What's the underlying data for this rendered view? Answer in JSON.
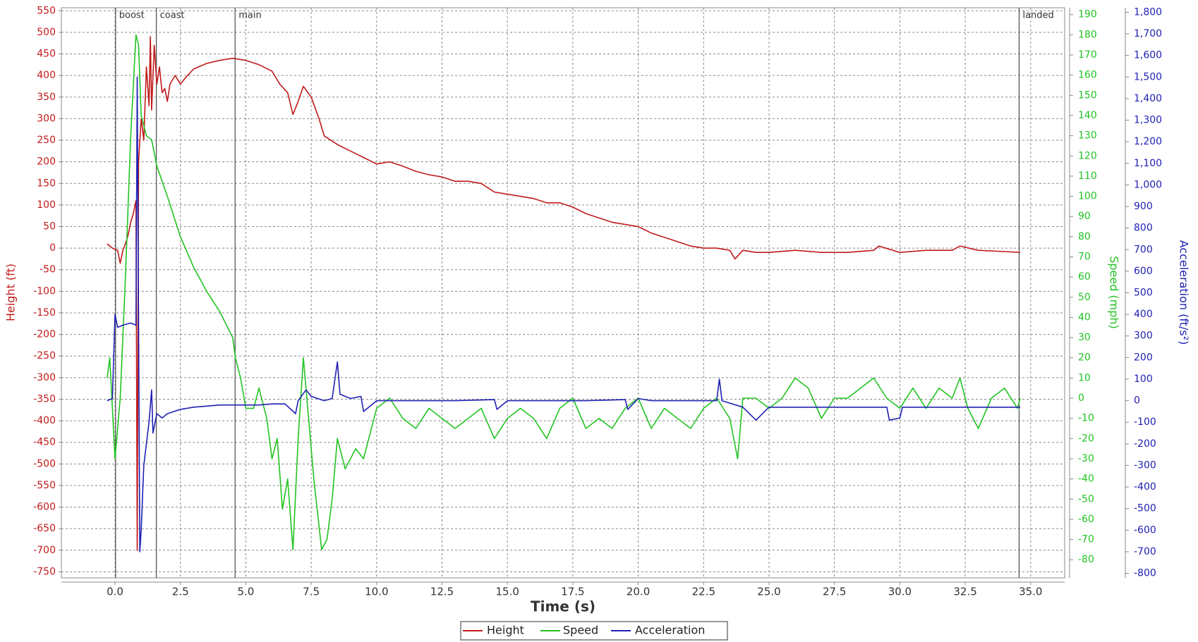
{
  "chart_data": {
    "type": "line",
    "xlabel": "Time (s)",
    "ylabel": "Height (ft)",
    "y2label": "Speed (mph)",
    "y3label": "Acceleration (ft/s²)",
    "xlim": [
      -2.05,
      36.3
    ],
    "xticks": [
      {
        "value": 0,
        "label": "0.0"
      },
      2.5,
      {
        "value": 5,
        "label": "5.0"
      },
      7.5,
      {
        "value": 10,
        "label": "10.0"
      },
      12.5,
      {
        "value": 15,
        "label": "15.0"
      },
      17.5,
      {
        "value": 20,
        "label": "20.0"
      },
      22.5,
      {
        "value": 25,
        "label": "25.0"
      },
      27.5,
      {
        "value": 30,
        "label": "30.0"
      },
      32.5,
      {
        "value": 35,
        "label": "35.0"
      }
    ],
    "ylim": [
      -764,
      557
    ],
    "yticks": [
      -750,
      -700,
      -650,
      -600,
      -550,
      -500,
      -450,
      -400,
      -350,
      -300,
      -250,
      -200,
      -150,
      -100,
      -50,
      0,
      50,
      100,
      150,
      200,
      250,
      300,
      350,
      400,
      450,
      500,
      550
    ],
    "y2lim": [
      -89,
      193.4
    ],
    "y2ticks": [
      -80,
      -70,
      -60,
      -50,
      -40,
      -30,
      -20,
      -10,
      0,
      10,
      20,
      30,
      40,
      50,
      60,
      70,
      80,
      90,
      100,
      110,
      120,
      130,
      140,
      150,
      160,
      170,
      180,
      190
    ],
    "y3lim": [
      -821,
      1821
    ],
    "y3ticks": [
      -800,
      -700,
      -600,
      -500,
      -400,
      -300,
      -200,
      -100,
      0,
      100,
      200,
      300,
      400,
      500,
      600,
      700,
      800,
      900,
      {
        "value": 1000,
        "label": "1,000"
      },
      {
        "value": 1100,
        "label": "1,100"
      },
      {
        "value": 1200,
        "label": "1,200"
      },
      {
        "value": 1300,
        "label": "1,300"
      },
      {
        "value": 1400,
        "label": "1,400"
      },
      {
        "value": 1500,
        "label": "1,500"
      },
      {
        "value": 1600,
        "label": "1,600"
      },
      {
        "value": 1700,
        "label": "1,700"
      },
      {
        "value": 1800,
        "label": "1,800"
      }
    ],
    "grid": true,
    "events": [
      {
        "label": "boost",
        "x": 0.02
      },
      {
        "label": "coast",
        "x": 1.58
      },
      {
        "label": "main",
        "x": 4.59
      },
      {
        "label": "landed",
        "x": 34.56
      }
    ],
    "series": [
      {
        "name": "Height",
        "color": "#c01a1a",
        "axis": "y",
        "x": [
          -0.3,
          -0.1,
          0.1,
          0.2,
          0.3,
          0.4,
          0.5,
          0.6,
          0.7,
          0.8,
          0.85,
          0.9,
          1.0,
          1.1,
          1.2,
          1.3,
          1.35,
          1.4,
          1.5,
          1.6,
          1.7,
          1.8,
          1.9,
          2.0,
          2.1,
          2.3,
          2.5,
          2.7,
          3.0,
          3.5,
          4.0,
          4.5,
          5.0,
          5.5,
          6.0,
          6.3,
          6.6,
          6.8,
          7.0,
          7.2,
          7.5,
          7.8,
          8.0,
          8.5,
          9.0,
          9.5,
          10.0,
          10.5,
          11.0,
          11.5,
          12.0,
          12.5,
          13.0,
          13.5,
          14.0,
          14.5,
          15.0,
          15.5,
          16.0,
          16.5,
          17.0,
          17.5,
          18.0,
          18.5,
          19.0,
          19.5,
          20.0,
          20.5,
          21.0,
          21.5,
          22.0,
          22.5,
          23.0,
          23.5,
          23.7,
          24.0,
          24.5,
          25.0,
          26.0,
          27.0,
          28.0,
          29.0,
          29.2,
          30.0,
          31.0,
          32.0,
          32.3,
          33.0,
          34.0,
          34.6
        ],
        "values": [
          10,
          0,
          -5,
          -35,
          -5,
          10,
          30,
          60,
          80,
          110,
          -700,
          200,
          300,
          250,
          420,
          330,
          490,
          320,
          470,
          380,
          420,
          360,
          370,
          340,
          380,
          400,
          380,
          395,
          415,
          428,
          435,
          440,
          435,
          425,
          410,
          380,
          360,
          310,
          340,
          375,
          350,
          300,
          260,
          240,
          225,
          210,
          195,
          200,
          190,
          178,
          170,
          165,
          155,
          155,
          150,
          130,
          125,
          120,
          115,
          105,
          105,
          95,
          80,
          70,
          60,
          55,
          50,
          35,
          25,
          15,
          5,
          0,
          0,
          -5,
          -25,
          -5,
          -10,
          -10,
          -5,
          -10,
          -10,
          -5,
          5,
          -10,
          -5,
          -5,
          5,
          -5,
          -8,
          -10
        ]
      },
      {
        "name": "Speed",
        "color": "#22c322",
        "axis": "y2",
        "x": [
          -0.3,
          -0.2,
          -0.1,
          0.0,
          0.2,
          0.4,
          0.6,
          0.8,
          0.9,
          1.0,
          1.2,
          1.4,
          1.6,
          2.0,
          2.5,
          3.0,
          3.5,
          4.0,
          4.5,
          4.6,
          4.8,
          5.0,
          5.3,
          5.5,
          5.8,
          6.0,
          6.2,
          6.4,
          6.6,
          6.8,
          7.0,
          7.2,
          7.4,
          7.6,
          7.9,
          8.1,
          8.3,
          8.5,
          8.8,
          9.2,
          9.5,
          10.0,
          10.5,
          11.0,
          11.5,
          12.0,
          12.5,
          13.0,
          13.5,
          14.0,
          14.5,
          15.0,
          15.5,
          16.0,
          16.5,
          17.0,
          17.5,
          18.0,
          18.5,
          19.0,
          19.5,
          20.0,
          20.5,
          21.0,
          21.5,
          22.0,
          22.5,
          23.0,
          23.5,
          23.8,
          24.0,
          24.5,
          25.0,
          25.5,
          26.0,
          26.5,
          27.0,
          27.5,
          28.0,
          28.5,
          29.0,
          29.5,
          30.0,
          30.5,
          31.0,
          31.5,
          32.0,
          32.3,
          32.6,
          33.0,
          33.5,
          34.0,
          34.5,
          34.6
        ],
        "values": [
          10,
          20,
          -5,
          -30,
          0,
          60,
          130,
          180,
          175,
          140,
          130,
          128,
          115,
          100,
          80,
          65,
          53,
          43,
          30,
          20,
          10,
          -5,
          -5,
          5,
          -10,
          -30,
          -20,
          -55,
          -40,
          -75,
          -20,
          20,
          -10,
          -40,
          -75,
          -70,
          -50,
          -20,
          -35,
          -25,
          -30,
          -5,
          0,
          -10,
          -15,
          -5,
          -10,
          -15,
          -10,
          -5,
          -20,
          -10,
          -5,
          -10,
          -20,
          -5,
          0,
          -15,
          -10,
          -15,
          -5,
          0,
          -15,
          -5,
          -10,
          -15,
          -5,
          0,
          -10,
          -30,
          0,
          0,
          -5,
          0,
          10,
          5,
          -10,
          0,
          0,
          5,
          10,
          0,
          -5,
          5,
          -5,
          5,
          0,
          10,
          -5,
          -15,
          0,
          5,
          -5,
          0
        ]
      },
      {
        "name": "Acceleration",
        "color": "#2020b4",
        "axis": "y3",
        "x": [
          -0.3,
          -0.1,
          0.0,
          0.1,
          0.3,
          0.6,
          0.8,
          0.85,
          0.95,
          1.0,
          1.1,
          1.3,
          1.4,
          1.45,
          1.6,
          1.8,
          2.0,
          2.5,
          3.0,
          3.5,
          4.0,
          4.5,
          5.0,
          5.5,
          6.0,
          6.5,
          6.9,
          7.0,
          7.3,
          7.5,
          8.0,
          8.3,
          8.5,
          8.6,
          9.0,
          9.4,
          9.5,
          10.0,
          10.5,
          11.0,
          12.0,
          13.0,
          14.5,
          14.6,
          15.0,
          16.0,
          17.0,
          18.0,
          19.5,
          19.6,
          20.0,
          20.5,
          21.0,
          22.0,
          23.0,
          23.1,
          23.2,
          24.0,
          24.5,
          25.0,
          26.0,
          28.0,
          29.5,
          29.6,
          30.0,
          30.1,
          32.0,
          34.6
        ],
        "values": [
          0,
          10,
          400,
          340,
          350,
          360,
          350,
          1500,
          -700,
          -600,
          -300,
          -100,
          50,
          -150,
          -60,
          -80,
          -60,
          -40,
          -30,
          -25,
          -20,
          -20,
          -20,
          -20,
          -15,
          -15,
          -60,
          0,
          50,
          20,
          0,
          10,
          180,
          30,
          10,
          20,
          -50,
          0,
          0,
          0,
          0,
          0,
          5,
          -40,
          0,
          0,
          0,
          0,
          5,
          -40,
          10,
          0,
          0,
          0,
          0,
          100,
          0,
          -30,
          -90,
          -30,
          -30,
          -30,
          -30,
          -90,
          -80,
          -30,
          -30,
          -30
        ]
      }
    ]
  }
}
